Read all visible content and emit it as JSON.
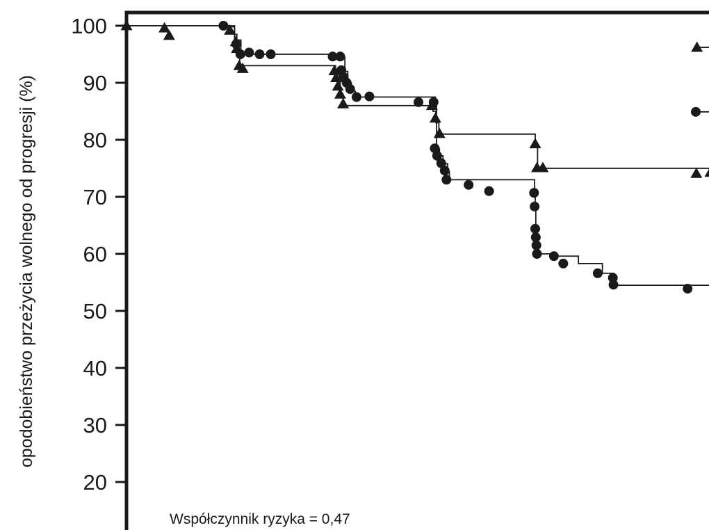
{
  "chart_data": {
    "type": "line",
    "title": "",
    "xlabel": "",
    "ylabel": "opodobieństwo przeżycia wolnego od progresji (%)",
    "ylim": [
      14,
      102
    ],
    "xlim": [
      0,
      100
    ],
    "yticks": [
      "100",
      "90",
      "80",
      "70",
      "60",
      "50",
      "40",
      "30",
      "20"
    ],
    "grid": false,
    "annotation": "Współczynnik ryzyka = 0,47",
    "series": [
      {
        "marker": "triangle",
        "color": "#1a1a1a",
        "steps": [
          [
            0,
            100
          ],
          [
            18.5,
            98.5
          ],
          [
            18.9,
            96.5
          ],
          [
            19.1,
            95
          ],
          [
            19.4,
            93
          ],
          [
            35.8,
            92
          ],
          [
            36.2,
            90
          ],
          [
            36.6,
            88
          ],
          [
            37.1,
            86
          ],
          [
            52.5,
            85
          ],
          [
            53.0,
            83
          ],
          [
            53.5,
            81
          ],
          [
            70.0,
            79
          ],
          [
            70.4,
            75
          ],
          [
            100,
            74
          ]
        ],
        "censored": [
          [
            0,
            100
          ],
          [
            6.5,
            99.6
          ],
          [
            7.3,
            98.3
          ],
          [
            17.7,
            99.2
          ],
          [
            18.7,
            97.2
          ],
          [
            18.9,
            96.0
          ],
          [
            19.3,
            93.0
          ],
          [
            19.9,
            92.5
          ],
          [
            35.6,
            92.1
          ],
          [
            35.9,
            90.9
          ],
          [
            36.2,
            89.4
          ],
          [
            36.6,
            88.0
          ],
          [
            37.1,
            86.3
          ],
          [
            52.3,
            86.0
          ],
          [
            52.9,
            83.8
          ],
          [
            53.6,
            81.1
          ],
          [
            70.0,
            79.3
          ],
          [
            70.3,
            75.1
          ],
          [
            71.3,
            75.1
          ],
          [
            97.6,
            74.1
          ],
          [
            100,
            74.3
          ],
          [
            97.7,
            96.2
          ]
        ]
      },
      {
        "marker": "circle",
        "color": "#1a1a1a",
        "steps": [
          [
            0,
            100
          ],
          [
            16.8,
            99.8
          ],
          [
            18.5,
            97.5
          ],
          [
            19.6,
            95
          ],
          [
            36.8,
            94.5
          ],
          [
            37.4,
            92
          ],
          [
            37.9,
            90
          ],
          [
            38.5,
            88.5
          ],
          [
            39.2,
            87.5
          ],
          [
            52.9,
            86.5
          ],
          [
            53.1,
            78.4
          ],
          [
            53.6,
            77.2
          ],
          [
            54.2,
            75.8
          ],
          [
            55.0,
            74.4
          ],
          [
            55.3,
            73.0
          ],
          [
            69.9,
            70.7
          ],
          [
            70.0,
            68.3
          ],
          [
            70.1,
            64.4
          ],
          [
            70.2,
            61.0
          ],
          [
            70.3,
            60.0
          ],
          [
            73.2,
            59.6
          ],
          [
            77.4,
            58.3
          ],
          [
            81.5,
            56.6
          ],
          [
            83.5,
            54.5
          ],
          [
            100,
            53.8
          ]
        ],
        "censored": [
          [
            16.6,
            100
          ],
          [
            18.8,
            96.8
          ],
          [
            19.5,
            95.0
          ],
          [
            21.0,
            95.3
          ],
          [
            22.8,
            95.0
          ],
          [
            24.7,
            95.0
          ],
          [
            35.3,
            94.6
          ],
          [
            36.6,
            94.6
          ],
          [
            36.8,
            92.2
          ],
          [
            37.2,
            91.0
          ],
          [
            37.7,
            90.0
          ],
          [
            38.3,
            88.9
          ],
          [
            39.4,
            87.5
          ],
          [
            41.6,
            87.6
          ],
          [
            50.0,
            86.6
          ],
          [
            52.6,
            86.6
          ],
          [
            52.8,
            78.5
          ],
          [
            53.2,
            77.2
          ],
          [
            53.9,
            75.9
          ],
          [
            54.5,
            74.6
          ],
          [
            54.8,
            73.0
          ],
          [
            58.6,
            72.1
          ],
          [
            62.1,
            71.0
          ],
          [
            69.8,
            70.7
          ],
          [
            69.9,
            68.3
          ],
          [
            70.0,
            64.4
          ],
          [
            70.1,
            62.9
          ],
          [
            70.2,
            61.5
          ],
          [
            70.3,
            60.0
          ],
          [
            73.2,
            59.6
          ],
          [
            74.8,
            58.3
          ],
          [
            80.7,
            56.6
          ],
          [
            83.3,
            55.8
          ],
          [
            83.4,
            54.6
          ],
          [
            96.1,
            53.9
          ],
          [
            97.5,
            84.9
          ]
        ]
      }
    ]
  }
}
